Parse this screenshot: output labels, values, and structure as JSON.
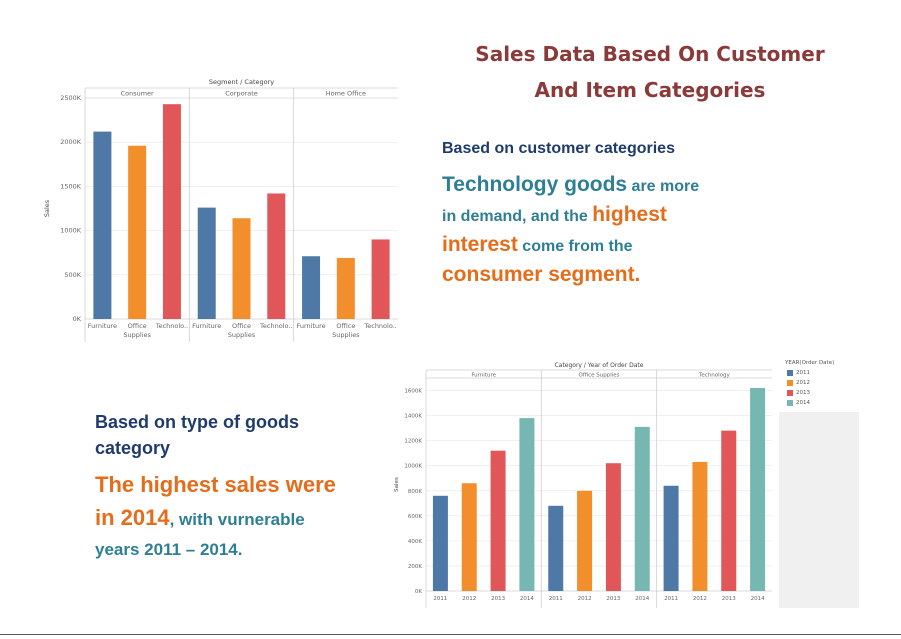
{
  "title_line1": "Sales Data Based On Customer",
  "title_line2": "And Item Categories",
  "insight1": {
    "heading": "Based on customer categories",
    "w1": "Technology goods",
    "w2": " are more",
    "w3": "in demand, and the ",
    "w4": "highest",
    "w5": "interest",
    "w6": " come from the",
    "w7": "consumer segment."
  },
  "insight2": {
    "heading_line1": "Based on type of goods",
    "heading_line2": "category",
    "w1": "The highest sales were",
    "w2": "in 2014",
    "w3": ", with vurnerable",
    "w4": "years 2011 –  2014."
  },
  "colors": {
    "blue": "#4e79a7",
    "orange": "#f28e2b",
    "red": "#e15759",
    "teal": "#76b7b2"
  },
  "chart_data": [
    {
      "type": "bar",
      "title": "Segment / Category",
      "ylabel": "Sales",
      "xlabel": "",
      "ylim": [
        0,
        2500000
      ],
      "yticks": [
        "0K",
        "500K",
        "1000K",
        "1500K",
        "2000K",
        "2500K"
      ],
      "grid": true,
      "panels": [
        {
          "name": "Consumer",
          "sublabel": "Supplies",
          "categories": [
            "Furniture",
            "Office",
            "Technolo.."
          ],
          "values": [
            2120000,
            1960000,
            2430000
          ]
        },
        {
          "name": "Corporate",
          "sublabel": "Supplies",
          "categories": [
            "Furniture",
            "Office",
            "Technolo.."
          ],
          "values": [
            1260000,
            1140000,
            1420000
          ]
        },
        {
          "name": "Home Office",
          "sublabel": "Supplies",
          "categories": [
            "Furniture",
            "Office",
            "Technolo.."
          ],
          "values": [
            710000,
            690000,
            900000
          ]
        }
      ]
    },
    {
      "type": "bar",
      "title": "Category / Year of Order Date",
      "ylabel": "Sales",
      "xlabel": "",
      "ylim": [
        0,
        1700000
      ],
      "yticks": [
        "0K",
        "200K",
        "400K",
        "600K",
        "800K",
        "1000K",
        "1200K",
        "1400K",
        "1600K"
      ],
      "grid": true,
      "legend": {
        "title": "YEAR(Order Date)",
        "placement": "right",
        "items": [
          "2011",
          "2012",
          "2013",
          "2014"
        ]
      },
      "panels": [
        {
          "name": "Furniture",
          "categories": [
            "2011",
            "2012",
            "2013",
            "2014"
          ],
          "values": [
            760000,
            860000,
            1120000,
            1380000
          ]
        },
        {
          "name": "Office Supplies",
          "categories": [
            "2011",
            "2012",
            "2013",
            "2014"
          ],
          "values": [
            680000,
            800000,
            1020000,
            1310000
          ]
        },
        {
          "name": "Technology",
          "categories": [
            "2011",
            "2012",
            "2013",
            "2014"
          ],
          "values": [
            840000,
            1030000,
            1280000,
            1620000
          ]
        }
      ]
    }
  ]
}
